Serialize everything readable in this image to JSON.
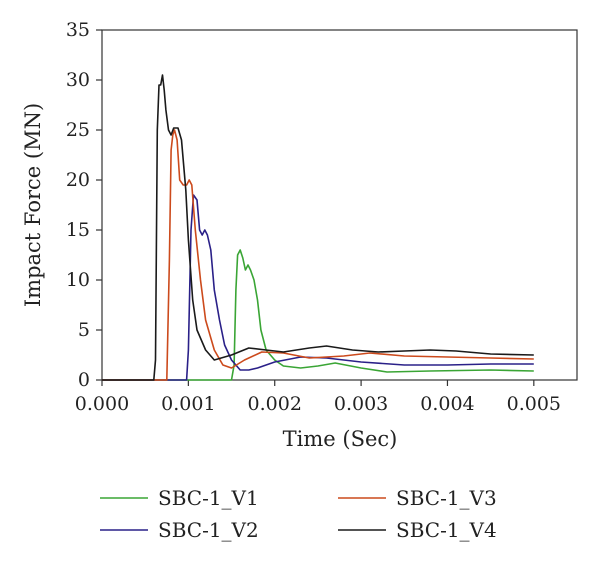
{
  "chart_data": {
    "type": "line",
    "title": "",
    "xlabel": "Time (Sec)",
    "ylabel": "Impact Force (MN)",
    "xlim": [
      0,
      0.0055
    ],
    "ylim": [
      0,
      35
    ],
    "xticks": [
      0,
      0.001,
      0.002,
      0.003,
      0.004,
      0.005
    ],
    "xtick_labels": [
      "0.000",
      "0.001",
      "0.002",
      "0.003",
      "0.004",
      "0.005"
    ],
    "yticks": [
      0,
      5,
      10,
      15,
      20,
      25,
      30,
      35
    ],
    "ytick_labels": [
      "0",
      "5",
      "10",
      "15",
      "20",
      "25",
      "30",
      "35"
    ],
    "grid": false,
    "legend_position": "bottom",
    "series": [
      {
        "name": "SBC-1_V1",
        "color": "#3aa535",
        "points": [
          [
            0,
            0
          ],
          [
            0.0015,
            0
          ],
          [
            0.00153,
            1.5
          ],
          [
            0.00155,
            9
          ],
          [
            0.00157,
            12.5
          ],
          [
            0.0016,
            13
          ],
          [
            0.00163,
            12.2
          ],
          [
            0.00166,
            11
          ],
          [
            0.00169,
            11.5
          ],
          [
            0.00172,
            11
          ],
          [
            0.00176,
            10
          ],
          [
            0.0018,
            8
          ],
          [
            0.00184,
            5
          ],
          [
            0.0019,
            3
          ],
          [
            0.002,
            2
          ],
          [
            0.0021,
            1.4
          ],
          [
            0.0023,
            1.2
          ],
          [
            0.0025,
            1.4
          ],
          [
            0.0027,
            1.7
          ],
          [
            0.003,
            1.2
          ],
          [
            0.0033,
            0.8
          ],
          [
            0.0038,
            0.9
          ],
          [
            0.0045,
            1.0
          ],
          [
            0.005,
            0.9
          ]
        ]
      },
      {
        "name": "SBC-1_V2",
        "color": "#2a2088",
        "points": [
          [
            0,
            0
          ],
          [
            0.00098,
            0
          ],
          [
            0.001,
            3
          ],
          [
            0.00103,
            15
          ],
          [
            0.00106,
            18.5
          ],
          [
            0.0011,
            18
          ],
          [
            0.00113,
            15
          ],
          [
            0.00116,
            14.5
          ],
          [
            0.00119,
            15
          ],
          [
            0.00122,
            14.5
          ],
          [
            0.00126,
            13
          ],
          [
            0.0013,
            9
          ],
          [
            0.00136,
            6
          ],
          [
            0.00142,
            3.5
          ],
          [
            0.0015,
            2
          ],
          [
            0.0016,
            1
          ],
          [
            0.0017,
            1
          ],
          [
            0.0018,
            1.2
          ],
          [
            0.002,
            1.8
          ],
          [
            0.0023,
            2.3
          ],
          [
            0.0026,
            2.2
          ],
          [
            0.003,
            1.8
          ],
          [
            0.0035,
            1.5
          ],
          [
            0.004,
            1.5
          ],
          [
            0.0045,
            1.6
          ],
          [
            0.005,
            1.6
          ]
        ]
      },
      {
        "name": "SBC-1_V3",
        "color": "#cc4a1c",
        "points": [
          [
            0,
            0
          ],
          [
            0.00075,
            0
          ],
          [
            0.00078,
            12
          ],
          [
            0.0008,
            23
          ],
          [
            0.00082,
            24.5
          ],
          [
            0.00084,
            25
          ],
          [
            0.00087,
            24
          ],
          [
            0.0009,
            20
          ],
          [
            0.00094,
            19.5
          ],
          [
            0.00098,
            19.5
          ],
          [
            0.00101,
            20
          ],
          [
            0.00104,
            19.5
          ],
          [
            0.00108,
            15
          ],
          [
            0.00114,
            10
          ],
          [
            0.0012,
            6
          ],
          [
            0.0013,
            3
          ],
          [
            0.0014,
            1.5
          ],
          [
            0.0015,
            1.2
          ],
          [
            0.00165,
            2
          ],
          [
            0.00185,
            2.8
          ],
          [
            0.0021,
            2.7
          ],
          [
            0.0024,
            2.2
          ],
          [
            0.0028,
            2.4
          ],
          [
            0.0031,
            2.7
          ],
          [
            0.0035,
            2.4
          ],
          [
            0.004,
            2.3
          ],
          [
            0.0045,
            2.2
          ],
          [
            0.005,
            2.1
          ]
        ]
      },
      {
        "name": "SBC-1_V4",
        "color": "#1a1a1a",
        "points": [
          [
            0,
            0
          ],
          [
            0.0006,
            0
          ],
          [
            0.00062,
            2
          ],
          [
            0.00064,
            25
          ],
          [
            0.00066,
            29.5
          ],
          [
            0.00068,
            29.5
          ],
          [
            0.0007,
            30.5
          ],
          [
            0.00072,
            29
          ],
          [
            0.00074,
            27
          ],
          [
            0.00077,
            25
          ],
          [
            0.0008,
            24.5
          ],
          [
            0.00083,
            25.2
          ],
          [
            0.00088,
            25.2
          ],
          [
            0.00092,
            24
          ],
          [
            0.00097,
            19
          ],
          [
            0.001,
            14
          ],
          [
            0.00105,
            8
          ],
          [
            0.0011,
            5
          ],
          [
            0.0012,
            3
          ],
          [
            0.0013,
            2
          ],
          [
            0.0015,
            2.5
          ],
          [
            0.0017,
            3.2
          ],
          [
            0.0019,
            3
          ],
          [
            0.0021,
            2.8
          ],
          [
            0.0024,
            3.2
          ],
          [
            0.0026,
            3.4
          ],
          [
            0.0029,
            3
          ],
          [
            0.0032,
            2.8
          ],
          [
            0.0035,
            2.9
          ],
          [
            0.0038,
            3
          ],
          [
            0.0041,
            2.9
          ],
          [
            0.0045,
            2.6
          ],
          [
            0.005,
            2.5
          ]
        ]
      }
    ]
  }
}
